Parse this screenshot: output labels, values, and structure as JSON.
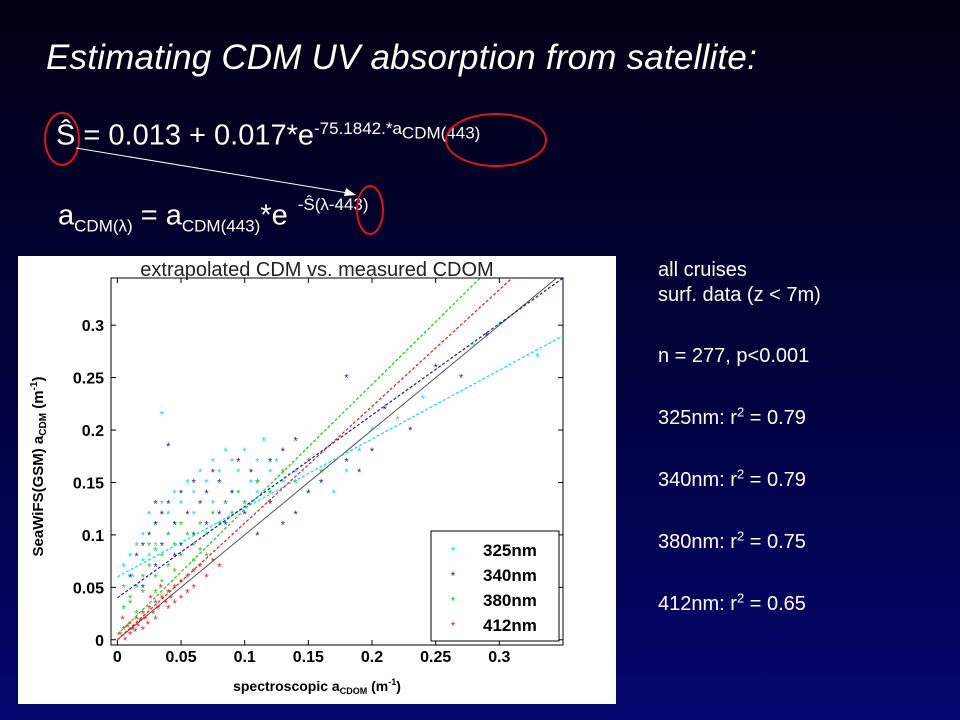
{
  "title": "Estimating CDM UV absorption from satellite:",
  "equation1": {
    "lhs": "Ŝ",
    "rhs": "= 0.013  + 0.017*e",
    "exponent": "-75.1842.*a",
    "exponent_sub": "CDM(443)"
  },
  "equation2": {
    "lhs_main": "a",
    "lhs_sub": "CDM(λ)",
    "mid": " = a",
    "mid_sub": "CDM(443)",
    "tail": "*e",
    "exponent": "-Ŝ(λ-443)"
  },
  "stats": {
    "line1": "all cruises",
    "line2": "surf. data (z < 7m)",
    "n_line": "n = 277, p<0.001",
    "rows": [
      {
        "label": "325nm: r",
        "sup": "2",
        "value": " = 0.79"
      },
      {
        "label": "340nm: r",
        "sup": "2",
        "value": " = 0.79"
      },
      {
        "label": "380nm: r",
        "sup": "2",
        "value": " = 0.75"
      },
      {
        "label": "412nm: r",
        "sup": "2",
        "value": " = 0.65"
      }
    ]
  },
  "colors": {
    "annotation_circle": "#e8101a",
    "325nm": "#00e0ff",
    "340nm": "#1a1aa8",
    "380nm": "#10d010",
    "412nm": "#ff1010"
  },
  "chart_data": {
    "type": "scatter",
    "title": "extrapolated CDM vs. measured CDOM",
    "xlabel": "spectroscopic a",
    "xlabel_sub": "CDOM",
    "xlabel_unit": " (m",
    "xlabel_unit_sup": "-1",
    "xlabel_close": ")",
    "ylabel": "SeaWiFS(GSM) a",
    "ylabel_sub": "CDM",
    "ylabel_unit": " (m",
    "ylabel_unit_sup": "-1",
    "ylabel_close": ")",
    "xlim": [
      -0.005,
      0.35
    ],
    "ylim": [
      -0.005,
      0.345
    ],
    "xticks": [
      0,
      0.05,
      0.1,
      0.15,
      0.2,
      0.25,
      0.3
    ],
    "xtick_labels": [
      "0",
      "0.05",
      "0.1",
      "0.15",
      "0.2",
      "0.25",
      "0.3"
    ],
    "yticks": [
      0,
      0.05,
      0.1,
      0.15,
      0.2,
      0.25,
      0.3
    ],
    "ytick_labels": [
      "0",
      "0.05",
      "0.1",
      "0.15",
      "0.2",
      "0.25",
      "0.3"
    ],
    "legend_position": "bottom-right",
    "one_to_one_line": true,
    "series": [
      {
        "name": "325nm",
        "color": "#00e0ff",
        "fit": {
          "x": [
            0,
            0.35
          ],
          "y": [
            0.06,
            0.29
          ]
        },
        "points": [
          [
            0.01,
            0.08
          ],
          [
            0.015,
            0.09
          ],
          [
            0.02,
            0.1
          ],
          [
            0.025,
            0.12
          ],
          [
            0.03,
            0.11
          ],
          [
            0.035,
            0.13
          ],
          [
            0.04,
            0.12
          ],
          [
            0.045,
            0.14
          ],
          [
            0.05,
            0.13
          ],
          [
            0.055,
            0.15
          ],
          [
            0.06,
            0.14
          ],
          [
            0.065,
            0.16
          ],
          [
            0.07,
            0.15
          ],
          [
            0.075,
            0.17
          ],
          [
            0.08,
            0.16
          ],
          [
            0.085,
            0.18
          ],
          [
            0.09,
            0.17
          ],
          [
            0.095,
            0.16
          ],
          [
            0.1,
            0.18
          ],
          [
            0.105,
            0.15
          ],
          [
            0.11,
            0.17
          ],
          [
            0.115,
            0.19
          ],
          [
            0.12,
            0.16
          ],
          [
            0.125,
            0.17
          ],
          [
            0.13,
            0.15
          ],
          [
            0.14,
            0.16
          ],
          [
            0.15,
            0.14
          ],
          [
            0.16,
            0.15
          ],
          [
            0.17,
            0.14
          ],
          [
            0.18,
            0.16
          ],
          [
            0.19,
            0.18
          ],
          [
            0.2,
            0.2
          ],
          [
            0.22,
            0.21
          ],
          [
            0.24,
            0.23
          ],
          [
            0.28,
            0.28
          ],
          [
            0.33,
            0.27
          ],
          [
            0.3,
            0.3
          ],
          [
            0.035,
            0.215
          ],
          [
            0.012,
            0.06
          ],
          [
            0.02,
            0.075
          ],
          [
            0.005,
            0.07
          ],
          [
            0.06,
            0.12
          ],
          [
            0.075,
            0.13
          ],
          [
            0.09,
            0.14
          ],
          [
            0.1,
            0.13
          ],
          [
            0.11,
            0.14
          ],
          [
            0.045,
            0.11
          ],
          [
            0.03,
            0.09
          ],
          [
            0.025,
            0.08
          ],
          [
            0.04,
            0.1
          ]
        ]
      },
      {
        "name": "340nm",
        "color": "#1a1aa8",
        "fit": {
          "x": [
            0,
            0.35
          ],
          "y": [
            0.04,
            0.345
          ]
        },
        "points": [
          [
            0.01,
            0.06
          ],
          [
            0.015,
            0.08
          ],
          [
            0.02,
            0.09
          ],
          [
            0.025,
            0.1
          ],
          [
            0.03,
            0.11
          ],
          [
            0.035,
            0.12
          ],
          [
            0.04,
            0.13
          ],
          [
            0.045,
            0.11
          ],
          [
            0.05,
            0.14
          ],
          [
            0.055,
            0.12
          ],
          [
            0.06,
            0.15
          ],
          [
            0.065,
            0.13
          ],
          [
            0.07,
            0.14
          ],
          [
            0.075,
            0.16
          ],
          [
            0.08,
            0.15
          ],
          [
            0.085,
            0.13
          ],
          [
            0.09,
            0.14
          ],
          [
            0.095,
            0.17
          ],
          [
            0.1,
            0.12
          ],
          [
            0.105,
            0.16
          ],
          [
            0.11,
            0.1
          ],
          [
            0.12,
            0.13
          ],
          [
            0.13,
            0.11
          ],
          [
            0.14,
            0.12
          ],
          [
            0.15,
            0.14
          ],
          [
            0.16,
            0.15
          ],
          [
            0.18,
            0.17
          ],
          [
            0.2,
            0.18
          ],
          [
            0.21,
            0.22
          ],
          [
            0.23,
            0.2
          ],
          [
            0.25,
            0.26
          ],
          [
            0.27,
            0.25
          ],
          [
            0.29,
            0.29
          ],
          [
            0.18,
            0.25
          ],
          [
            0.04,
            0.185
          ],
          [
            0.19,
            0.16
          ],
          [
            0.03,
            0.07
          ],
          [
            0.02,
            0.05
          ],
          [
            0.05,
            0.09
          ],
          [
            0.06,
            0.1
          ],
          [
            0.07,
            0.11
          ],
          [
            0.08,
            0.12
          ],
          [
            0.085,
            0.11
          ],
          [
            0.045,
            0.08
          ],
          [
            0.035,
            0.09
          ],
          [
            0.11,
            0.15
          ],
          [
            0.12,
            0.17
          ],
          [
            0.13,
            0.18
          ],
          [
            0.14,
            0.19
          ],
          [
            0.03,
            0.13
          ]
        ]
      },
      {
        "name": "380nm",
        "color": "#10d010",
        "fit": {
          "x": [
            0,
            0.285
          ],
          "y": [
            0.005,
            0.345
          ]
        },
        "points": [
          [
            0.005,
            0.03
          ],
          [
            0.01,
            0.04
          ],
          [
            0.015,
            0.05
          ],
          [
            0.02,
            0.06
          ],
          [
            0.025,
            0.07
          ],
          [
            0.03,
            0.06
          ],
          [
            0.035,
            0.08
          ],
          [
            0.04,
            0.07
          ],
          [
            0.045,
            0.09
          ],
          [
            0.05,
            0.08
          ],
          [
            0.055,
            0.1
          ],
          [
            0.06,
            0.09
          ],
          [
            0.065,
            0.11
          ],
          [
            0.07,
            0.1
          ],
          [
            0.075,
            0.12
          ],
          [
            0.08,
            0.11
          ],
          [
            0.085,
            0.13
          ],
          [
            0.09,
            0.12
          ],
          [
            0.095,
            0.14
          ],
          [
            0.1,
            0.13
          ],
          [
            0.11,
            0.15
          ],
          [
            0.12,
            0.14
          ],
          [
            0.13,
            0.16
          ],
          [
            0.14,
            0.15
          ],
          [
            0.15,
            0.17
          ],
          [
            0.16,
            0.16
          ],
          [
            0.005,
            0.05
          ],
          [
            0.01,
            0.035
          ],
          [
            0.02,
            0.045
          ],
          [
            0.025,
            0.09
          ],
          [
            0.03,
            0.085
          ],
          [
            0.04,
            0.1
          ],
          [
            0.045,
            0.065
          ],
          [
            0.05,
            0.11
          ],
          [
            0.06,
            0.075
          ],
          [
            0.065,
            0.085
          ],
          [
            0.07,
            0.08
          ],
          [
            0.03,
            0.045
          ],
          [
            0.035,
            0.055
          ],
          [
            0.015,
            0.025
          ]
        ]
      },
      {
        "name": "412nm",
        "color": "#ff1010",
        "fit": {
          "x": [
            0,
            0.31
          ],
          "y": [
            0.0,
            0.345
          ]
        },
        "points": [
          [
            0.002,
            0.005
          ],
          [
            0.005,
            0.01
          ],
          [
            0.008,
            0.012
          ],
          [
            0.01,
            0.015
          ],
          [
            0.012,
            0.01
          ],
          [
            0.015,
            0.02
          ],
          [
            0.018,
            0.018
          ],
          [
            0.02,
            0.025
          ],
          [
            0.022,
            0.02
          ],
          [
            0.025,
            0.03
          ],
          [
            0.028,
            0.025
          ],
          [
            0.03,
            0.035
          ],
          [
            0.032,
            0.03
          ],
          [
            0.035,
            0.04
          ],
          [
            0.038,
            0.035
          ],
          [
            0.04,
            0.045
          ],
          [
            0.042,
            0.04
          ],
          [
            0.045,
            0.05
          ],
          [
            0.05,
            0.055
          ],
          [
            0.055,
            0.06
          ],
          [
            0.06,
            0.065
          ],
          [
            0.065,
            0.07
          ],
          [
            0.07,
            0.06
          ],
          [
            0.075,
            0.075
          ],
          [
            0.08,
            0.07
          ],
          [
            0.004,
            0.02
          ],
          [
            0.006,
            0.0
          ],
          [
            0.01,
            0.005
          ],
          [
            0.014,
            0.008
          ],
          [
            0.016,
            0.013
          ],
          [
            0.02,
            0.01
          ],
          [
            0.024,
            0.015
          ],
          [
            0.026,
            0.04
          ],
          [
            0.03,
            0.02
          ],
          [
            0.034,
            0.05
          ],
          [
            0.04,
            0.03
          ],
          [
            0.045,
            0.035
          ],
          [
            0.05,
            0.04
          ],
          [
            0.055,
            0.045
          ],
          [
            0.06,
            0.05
          ]
        ]
      }
    ]
  }
}
